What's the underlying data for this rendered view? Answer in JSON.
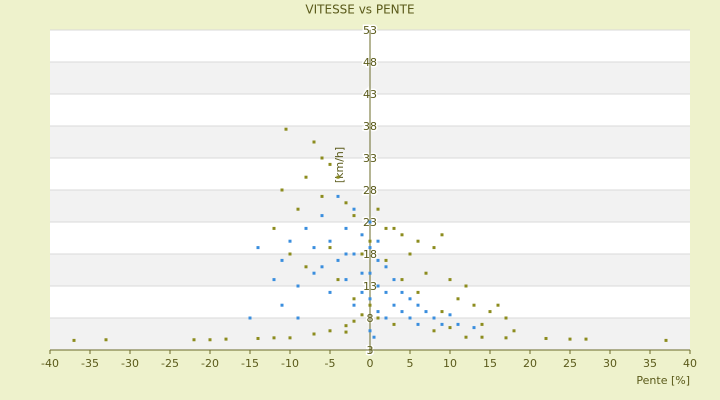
{
  "chart_data": {
    "type": "scatter",
    "title": "VITESSE vs PENTE",
    "x_label": "Pente [%]",
    "y_label": "[km/h]",
    "xlim": [
      -40,
      40
    ],
    "xticks": [
      -40,
      -35,
      -30,
      -25,
      -20,
      -15,
      -10,
      -5,
      0,
      5,
      10,
      15,
      20,
      25,
      30,
      35,
      40
    ],
    "ylim": [
      3,
      53
    ],
    "yticks": [
      3,
      8,
      13,
      18,
      23,
      28,
      33,
      38,
      43,
      48,
      53
    ],
    "grid": true,
    "series": [
      {
        "color": "#8c8c1e",
        "x": [
          -37,
          -33,
          -22,
          -20,
          -18,
          -14,
          -12,
          -10,
          -7,
          -5,
          -3,
          -2,
          -1,
          0,
          12,
          14,
          17,
          22,
          25,
          27,
          37,
          -10.5,
          -7,
          -6,
          -5,
          -4,
          -8,
          -11,
          -9,
          -12,
          -10,
          -8,
          -6,
          -3,
          -2,
          1,
          2,
          3,
          4,
          5,
          6,
          8,
          9,
          7,
          10,
          12,
          11,
          13,
          15,
          14,
          17,
          16,
          -2,
          1,
          3,
          5,
          8,
          10,
          18,
          -4,
          -1,
          0,
          2,
          4,
          6,
          9,
          -3,
          -5
        ],
        "values": [
          4.5,
          4.6,
          4.6,
          4.6,
          4.7,
          4.8,
          4.9,
          4.9,
          5.5,
          6,
          6.8,
          7.5,
          8.5,
          10,
          5,
          5,
          4.9,
          4.8,
          4.7,
          4.7,
          4.5,
          37.5,
          35.5,
          33,
          32,
          30,
          30,
          28,
          25,
          22,
          18,
          16,
          27,
          26,
          24,
          25,
          22,
          22,
          21,
          18,
          20,
          19,
          21,
          15,
          14,
          13,
          11,
          10,
          9,
          7,
          8,
          10,
          11,
          8,
          7,
          8,
          6,
          6.5,
          6,
          14,
          18,
          20,
          17,
          14,
          12,
          9,
          5.8,
          19
        ]
      },
      {
        "color": "#3a8ede",
        "x": [
          -14,
          -12,
          -11,
          -10,
          -9,
          -8,
          -7,
          -6,
          -5,
          -5,
          -4,
          -4,
          -3,
          -3,
          -2,
          -2,
          -2,
          -1,
          -1,
          -1,
          0,
          0,
          0,
          0,
          0.5,
          1,
          1,
          1,
          2,
          2,
          2,
          3,
          3,
          4,
          4,
          5,
          5,
          6,
          6,
          7,
          8,
          9,
          10,
          11,
          13,
          -6,
          -7,
          -3,
          0,
          1,
          -9,
          -11,
          -15
        ],
        "values": [
          19,
          14,
          17,
          20,
          13,
          22,
          15,
          24,
          20,
          12,
          27,
          17,
          22,
          14,
          25,
          18,
          10,
          21,
          15,
          12,
          19,
          15,
          11,
          6,
          5,
          17,
          13,
          9,
          16,
          12,
          8,
          14,
          10,
          12,
          9,
          11,
          8,
          10,
          7,
          9,
          8,
          7,
          8.5,
          7,
          6.5,
          16,
          19,
          18,
          23,
          20,
          8,
          10,
          8
        ]
      }
    ]
  }
}
